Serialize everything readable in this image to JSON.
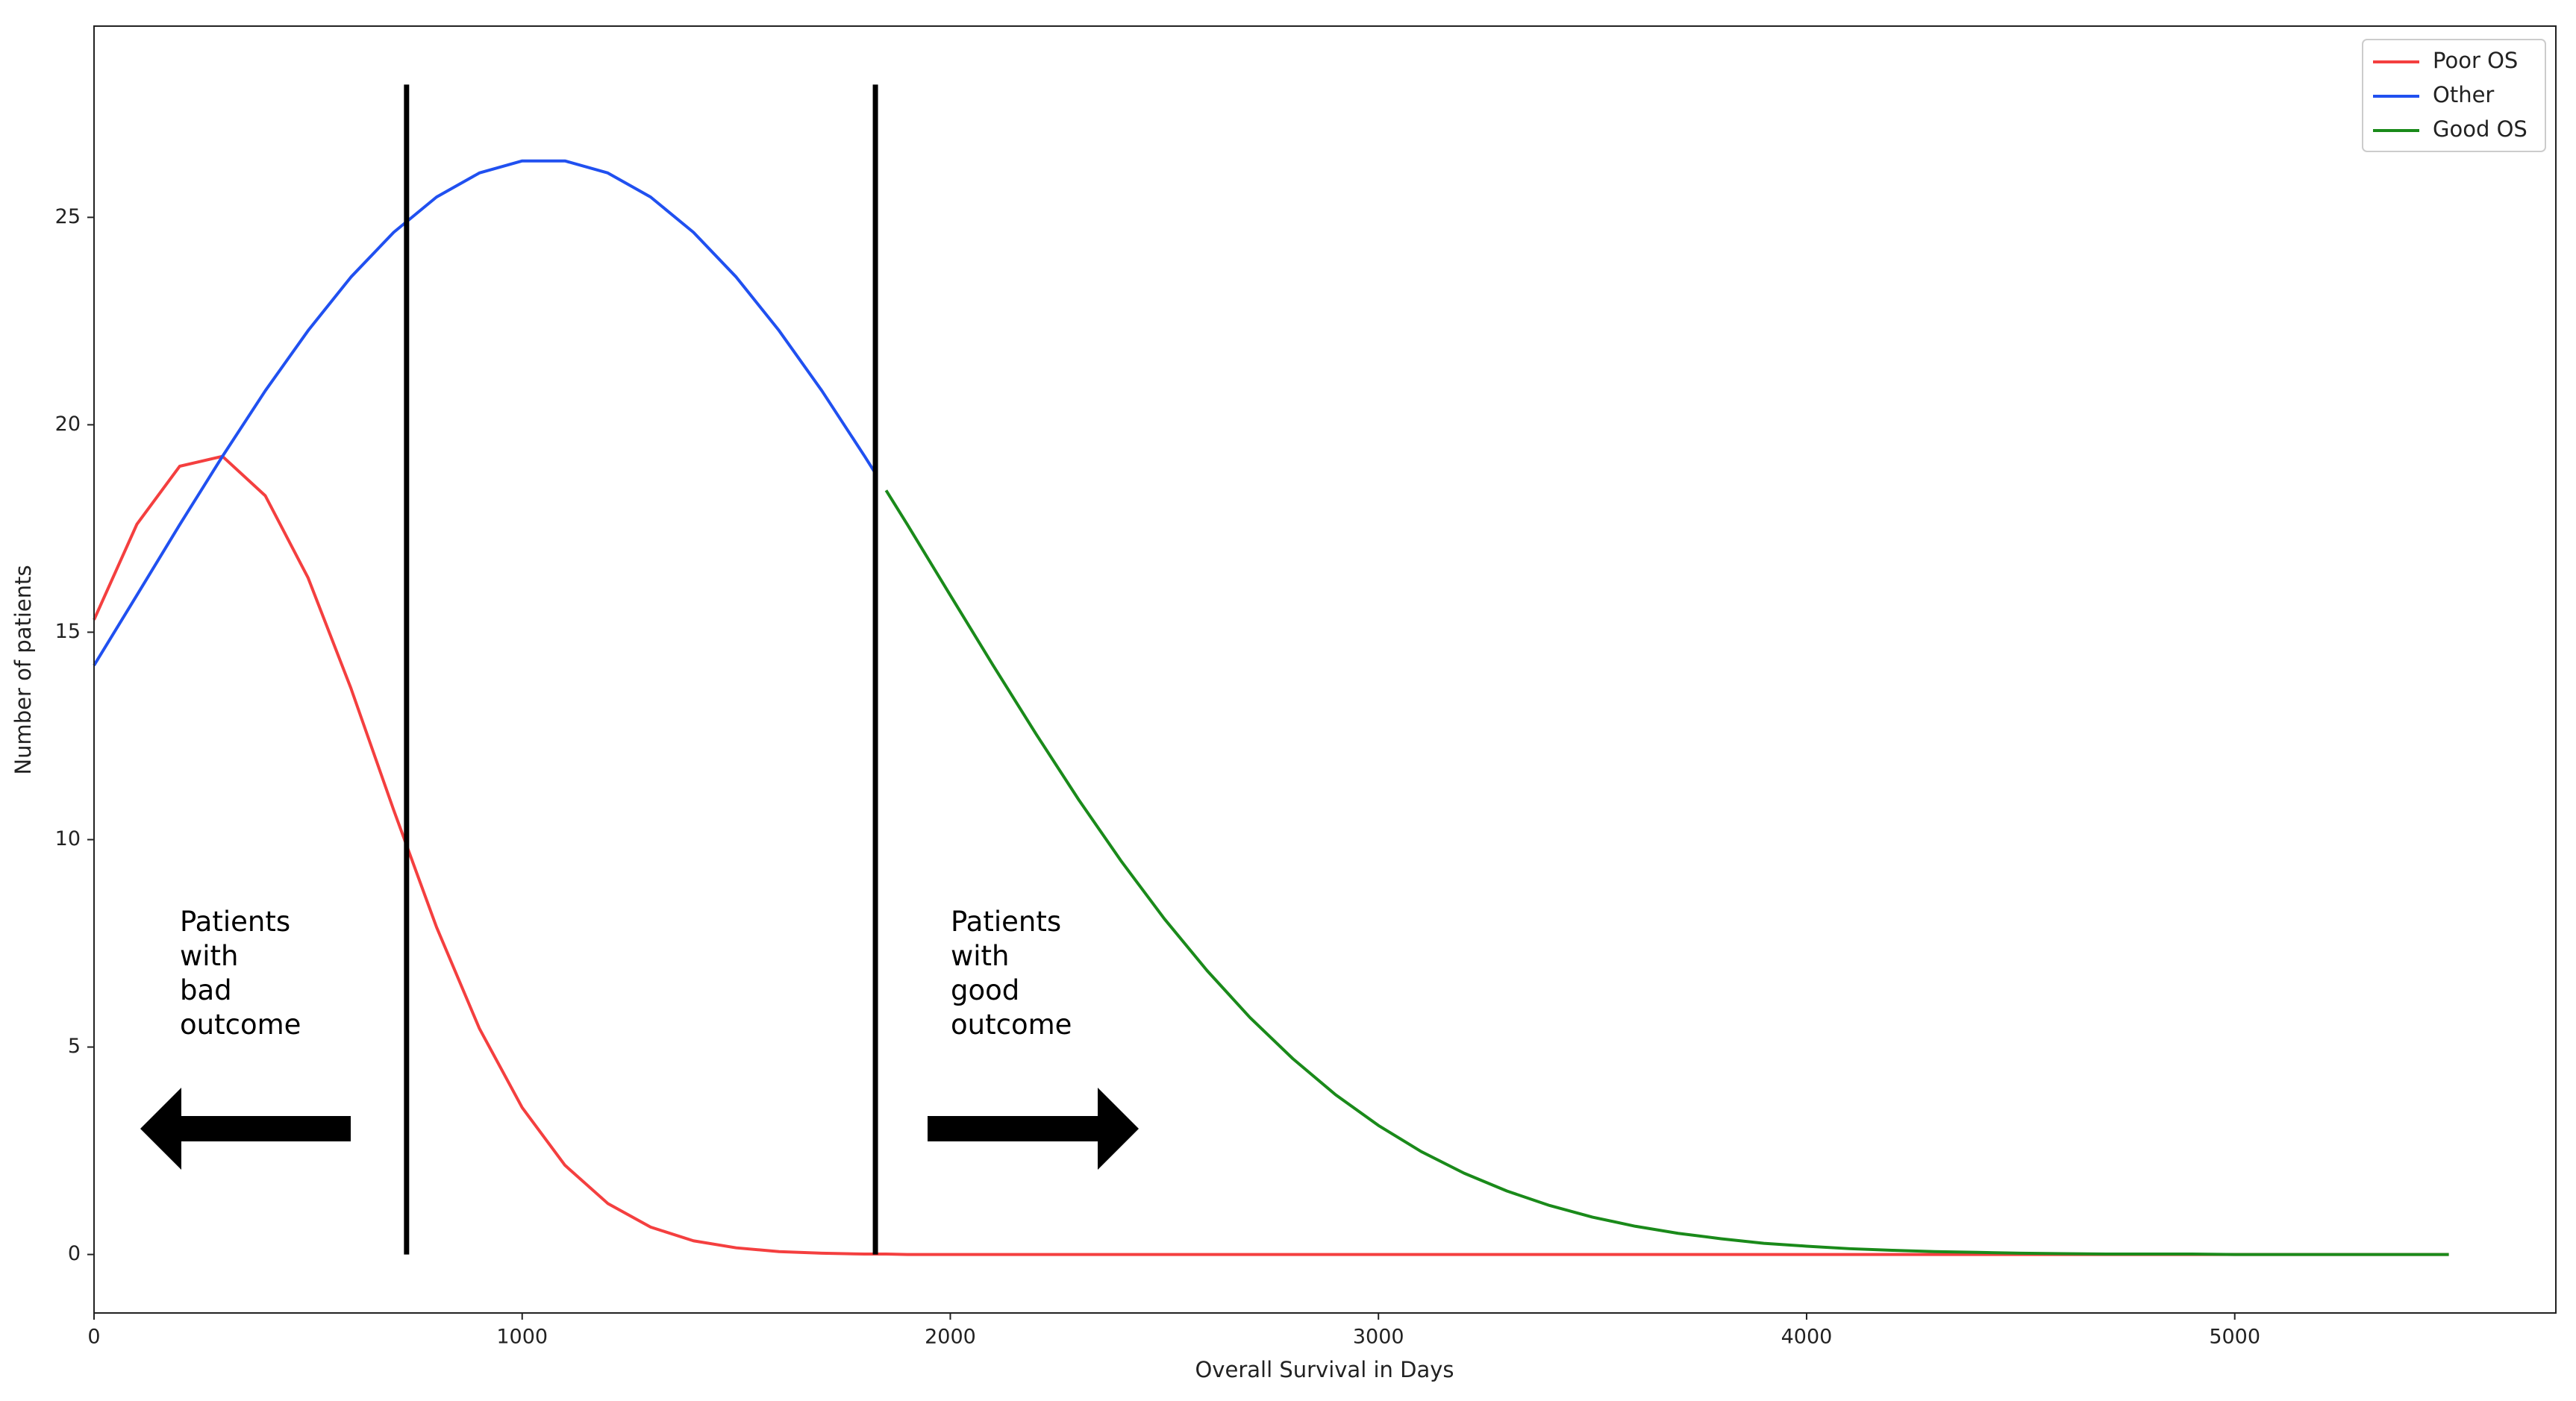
{
  "chart_data": {
    "type": "line",
    "x_label": "Overall Survival in Days",
    "y_label": "Number of patients",
    "x": [
      0,
      100,
      200,
      300,
      400,
      500,
      600,
      700,
      800,
      900,
      1000,
      1100,
      1200,
      1300,
      1400,
      1500,
      1600,
      1700,
      1800,
      1825,
      1850,
      1900,
      2000,
      2100,
      2200,
      2300,
      2400,
      2500,
      2600,
      2700,
      2800,
      2900,
      3000,
      3100,
      3200,
      3300,
      3400,
      3500,
      3600,
      3700,
      3800,
      3900,
      4000,
      4100,
      4200,
      4300,
      4400,
      4500,
      4600,
      4700,
      4800,
      4900,
      5000,
      5100,
      5200,
      5300,
      5400,
      5500
    ],
    "series": [
      {
        "name": "Poor OS",
        "color": "#f43f3f",
        "values": [
          15.3,
          17.6,
          19.0,
          19.24,
          18.29,
          16.31,
          13.65,
          10.71,
          7.89,
          5.45,
          3.54,
          2.15,
          1.23,
          0.66,
          0.33,
          0.16,
          0.07,
          0.03,
          0.01,
          0.01,
          0.01,
          0,
          0,
          0,
          0,
          0,
          0,
          0,
          0,
          0,
          0,
          0,
          0,
          0,
          0,
          0,
          0,
          0,
          0,
          0,
          0,
          0,
          0,
          0,
          0,
          0,
          0,
          0,
          0,
          0,
          0,
          0,
          0,
          0,
          0,
          0,
          0,
          0
        ]
      },
      {
        "name": "Other",
        "color": "#2050f0",
        "values": [
          14.2,
          15.89,
          17.59,
          19.24,
          20.82,
          22.27,
          23.56,
          24.64,
          25.49,
          26.07,
          26.36,
          26.36,
          26.07,
          25.49,
          24.64,
          23.56,
          22.27,
          20.82,
          19.24,
          18.83,
          null,
          null,
          null,
          null,
          null,
          null,
          null,
          null,
          null,
          null,
          null,
          null,
          null,
          null,
          null,
          null,
          null,
          null,
          null,
          null,
          null,
          null,
          null,
          null,
          null,
          null,
          null,
          null,
          null,
          null,
          null,
          null,
          null,
          null,
          null,
          null,
          null,
          null
        ]
      },
      {
        "name": "Good OS",
        "color": "#1a8a1a",
        "values": [
          null,
          null,
          null,
          null,
          null,
          null,
          null,
          null,
          null,
          null,
          null,
          null,
          null,
          null,
          null,
          null,
          null,
          null,
          null,
          null,
          18.42,
          17.59,
          15.89,
          14.2,
          12.55,
          10.96,
          9.47,
          8.09,
          6.84,
          5.71,
          4.72,
          3.85,
          3.11,
          2.48,
          1.96,
          1.53,
          1.18,
          0.9,
          0.68,
          0.51,
          0.38,
          0.27,
          0.2,
          0.14,
          0.1,
          0.07,
          0.05,
          0.03,
          0.02,
          0.01,
          0.01,
          0.01,
          0,
          0,
          0,
          0,
          0,
          0
        ]
      }
    ],
    "vlines": [
      {
        "x": 730,
        "ymin": 0,
        "ymax": 28.2
      },
      {
        "x": 1825,
        "ymin": 0,
        "ymax": 28.2
      }
    ],
    "annotations": [
      {
        "lines": [
          "Patients",
          "with",
          "bad",
          "outcome"
        ]
      },
      {
        "lines": [
          "Patients",
          "with",
          "good",
          "outcome"
        ]
      }
    ],
    "xlim": [
      0,
      5750
    ],
    "ylim": [
      -1.41,
      29.61
    ],
    "xticks": [
      0,
      1000,
      2000,
      3000,
      4000,
      5000
    ],
    "yticks": [
      0,
      5,
      10,
      15,
      20,
      25
    ],
    "grid": false,
    "legend": "upper right"
  }
}
